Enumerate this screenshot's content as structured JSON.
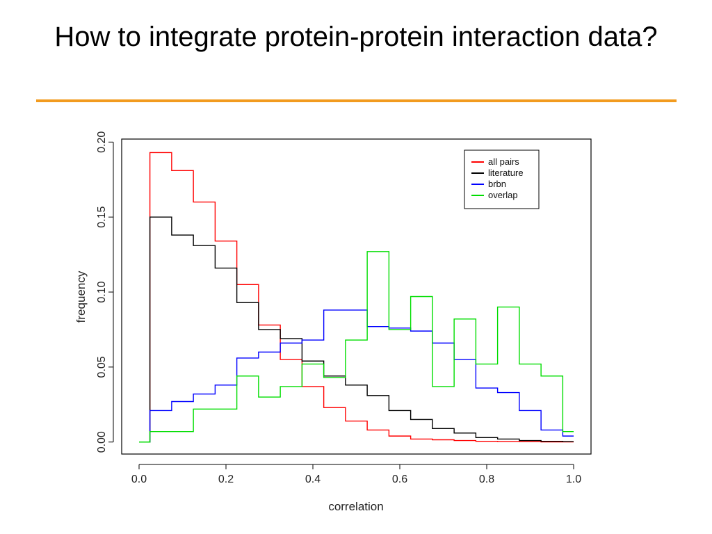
{
  "slide": {
    "title": "How to integrate protein-protein interaction data?",
    "rule_color": "#f29b1f"
  },
  "chart_data": {
    "type": "line",
    "style": "step",
    "xlabel": "correlation",
    "ylabel": "frequency",
    "xlim": [
      -0.04,
      1.04
    ],
    "ylim": [
      -0.008,
      0.202
    ],
    "x_ticks": [
      "0.0",
      "0.2",
      "0.4",
      "0.6",
      "0.8",
      "1.0"
    ],
    "y_ticks": [
      "0.00",
      "0.05",
      "0.10",
      "0.15",
      "0.20"
    ],
    "grid": false,
    "legend_position": "top-right",
    "bin_edges": [
      0.025,
      0.075,
      0.125,
      0.175,
      0.225,
      0.275,
      0.325,
      0.375,
      0.425,
      0.475,
      0.525,
      0.575,
      0.625,
      0.675,
      0.725,
      0.775,
      0.825,
      0.875,
      0.925,
      0.975,
      1.0
    ],
    "series": [
      {
        "name": "all pairs",
        "color": "#ff0000",
        "values": [
          0.193,
          0.181,
          0.16,
          0.134,
          0.105,
          0.078,
          0.055,
          0.037,
          0.023,
          0.014,
          0.008,
          0.004,
          0.002,
          0.0015,
          0.001,
          0.0005,
          0.0003,
          0.0002,
          0.0001,
          0.0001
        ]
      },
      {
        "name": "literature",
        "color": "#000000",
        "values": [
          0.15,
          0.138,
          0.131,
          0.116,
          0.093,
          0.075,
          0.069,
          0.054,
          0.044,
          0.038,
          0.031,
          0.021,
          0.015,
          0.009,
          0.006,
          0.003,
          0.002,
          0.001,
          0.0005,
          0.0003
        ]
      },
      {
        "name": "brbn",
        "color": "#0000ff",
        "values": [
          0.021,
          0.027,
          0.032,
          0.038,
          0.056,
          0.06,
          0.066,
          0.068,
          0.088,
          0.088,
          0.077,
          0.076,
          0.074,
          0.066,
          0.055,
          0.036,
          0.033,
          0.021,
          0.008,
          0.004
        ]
      },
      {
        "name": "overlap",
        "color": "#00dd00",
        "values": [
          0.007,
          0.007,
          0.022,
          0.022,
          0.044,
          0.03,
          0.037,
          0.052,
          0.043,
          0.068,
          0.127,
          0.075,
          0.097,
          0.037,
          0.082,
          0.052,
          0.09,
          0.052,
          0.044,
          0.007
        ]
      }
    ]
  }
}
